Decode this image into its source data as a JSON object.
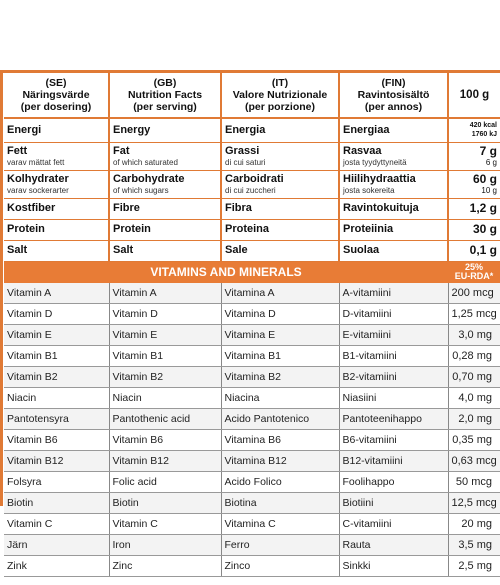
{
  "header": {
    "col1": [
      "(SE)",
      "Näringsvärde",
      "(per dosering)"
    ],
    "col2": [
      "(GB)",
      "Nutrition Facts",
      "(per serving)"
    ],
    "col3": [
      "(IT)",
      "Valore Nutrizionale",
      "(per porzione)"
    ],
    "col4": [
      "(FIN)",
      "Ravintosisältö",
      "(per annos)"
    ],
    "amount": "100 g"
  },
  "nutrition": [
    {
      "se": "Energi",
      "gb": "Energy",
      "it": "Energia",
      "fin": "Energiaa",
      "v1": "420 kcal",
      "v2": "1760 kJ"
    },
    {
      "se": "Fett",
      "se_sub": "varav mättat fett",
      "gb": "Fat",
      "gb_sub": "of which saturated",
      "it": "Grassi",
      "it_sub": "di cui saturi",
      "fin": "Rasvaa",
      "fin_sub": "josta tyydyttyneitä",
      "v1": "7 g",
      "v2": "6 g"
    },
    {
      "se": "Kolhydrater",
      "se_sub": "varav sockerarter",
      "gb": "Carbohydrate",
      "gb_sub": "of which sugars",
      "it": "Carboidrati",
      "it_sub": "di cui zuccheri",
      "fin": "Hiilihydraattia",
      "fin_sub": "josta sokereita",
      "v1": "60 g",
      "v2": "10 g"
    },
    {
      "se": "Kostfiber",
      "gb": "Fibre",
      "it": "Fibra",
      "fin": "Ravintokuituja",
      "v1": "1,2 g"
    },
    {
      "se": "Protein",
      "gb": "Protein",
      "it": "Proteina",
      "fin": "Proteiinia",
      "v1": "30 g"
    },
    {
      "se": "Salt",
      "gb": "Salt",
      "it": "Sale",
      "fin": "Suolaa",
      "v1": "0,1 g"
    }
  ],
  "vitamins_band": {
    "title": "VITAMINS AND MINERALS",
    "rda_line1": "25%",
    "rda_line2": "EU-RDA*"
  },
  "vitamins": [
    {
      "se": "Vitamin A",
      "gb": "Vitamin A",
      "it": "Vitamina A",
      "fin": "A-vitamiini",
      "value": "200 mcg"
    },
    {
      "se": "Vitamin D",
      "gb": "Vitamin D",
      "it": "Vitamina D",
      "fin": "D-vitamiini",
      "value": "1,25 mcg"
    },
    {
      "se": "Vitamin E",
      "gb": "Vitamin E",
      "it": "Vitamina E",
      "fin": "E-vitamiini",
      "value": "3,0 mg"
    },
    {
      "se": "Vitamin B1",
      "gb": "Vitamin B1",
      "it": "Vitamina B1",
      "fin": "B1-vitamiini",
      "value": "0,28 mg"
    },
    {
      "se": "Vitamin B2",
      "gb": "Vitamin B2",
      "it": "Vitamina B2",
      "fin": "B2-vitamiini",
      "value": "0,70 mg"
    },
    {
      "se": "Niacin",
      "gb": "Niacin",
      "it": "Niacina",
      "fin": "Niasiini",
      "value": "4,0 mg"
    },
    {
      "se": "Pantotensyra",
      "gb": "Pantothenic acid",
      "it": "Acido Pantotenico",
      "fin": "Pantoteenihappo",
      "value": "2,0 mg"
    },
    {
      "se": "Vitamin B6",
      "gb": "Vitamin B6",
      "it": "Vitamina B6",
      "fin": "B6-vitamiini",
      "value": "0,35 mg"
    },
    {
      "se": "Vitamin B12",
      "gb": "Vitamin B12",
      "it": "Vitamina B12",
      "fin": "B12-vitamiini",
      "value": "0,63 mcg"
    },
    {
      "se": "Folsyra",
      "gb": "Folic acid",
      "it": "Acido Folico",
      "fin": "Foolihappo",
      "value": "50 mcg"
    },
    {
      "se": "Biotin",
      "gb": "Biotin",
      "it": "Biotina",
      "fin": "Biotiini",
      "value": "12,5 mcg"
    },
    {
      "se": "Vitamin C",
      "gb": "Vitamin C",
      "it": "Vitamina C",
      "fin": "C-vitamiini",
      "value": "20 mg"
    },
    {
      "se": "Järn",
      "gb": "Iron",
      "it": "Ferro",
      "fin": "Rauta",
      "value": "3,5 mg"
    },
    {
      "se": "Zink",
      "gb": "Zinc",
      "it": "Zinco",
      "fin": "Sinkki",
      "value": "2,5 mg"
    }
  ],
  "colors": {
    "accent": "#e87c36",
    "rule": "#e07a35"
  }
}
